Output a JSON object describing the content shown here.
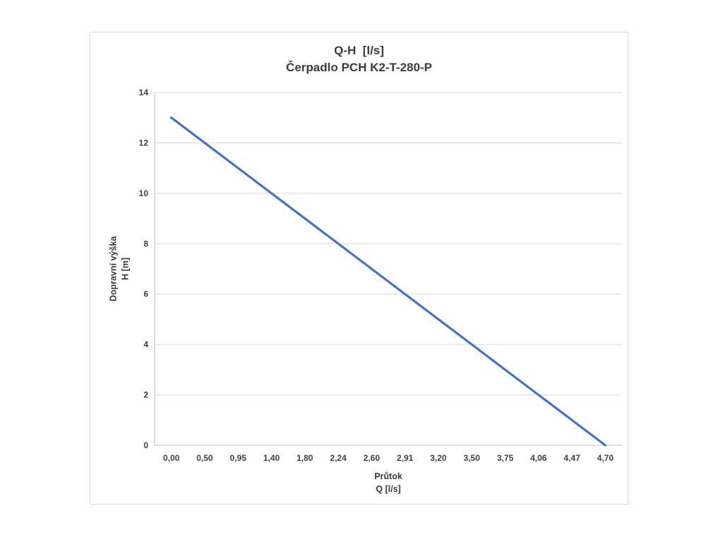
{
  "chart_data": {
    "type": "line",
    "title": "Q-H  [l/s]",
    "subtitle": "Čerpadlo PCH K2-T-280-P",
    "xlabel_line1": "Průtok",
    "xlabel_line2": "Q [l/s]",
    "ylabel_line1": "Dopravní výška",
    "ylabel_line2": "H [m]",
    "categories": [
      "0,00",
      "0,50",
      "0,95",
      "1,40",
      "1,80",
      "2,24",
      "2,60",
      "2,91",
      "3,20",
      "3,50",
      "3,75",
      "4,06",
      "4,47",
      "4,70"
    ],
    "values": [
      13,
      12,
      11,
      10,
      9,
      8,
      7,
      6,
      5,
      4,
      3,
      2,
      1,
      0
    ],
    "ylim": [
      0,
      14
    ],
    "ytick_step": 2,
    "grid": true,
    "legend": "none",
    "colors": {
      "line": "#4472C4",
      "gridline": "#d9d9d9",
      "axis": "#bfbfbf",
      "text": "#404040"
    }
  }
}
